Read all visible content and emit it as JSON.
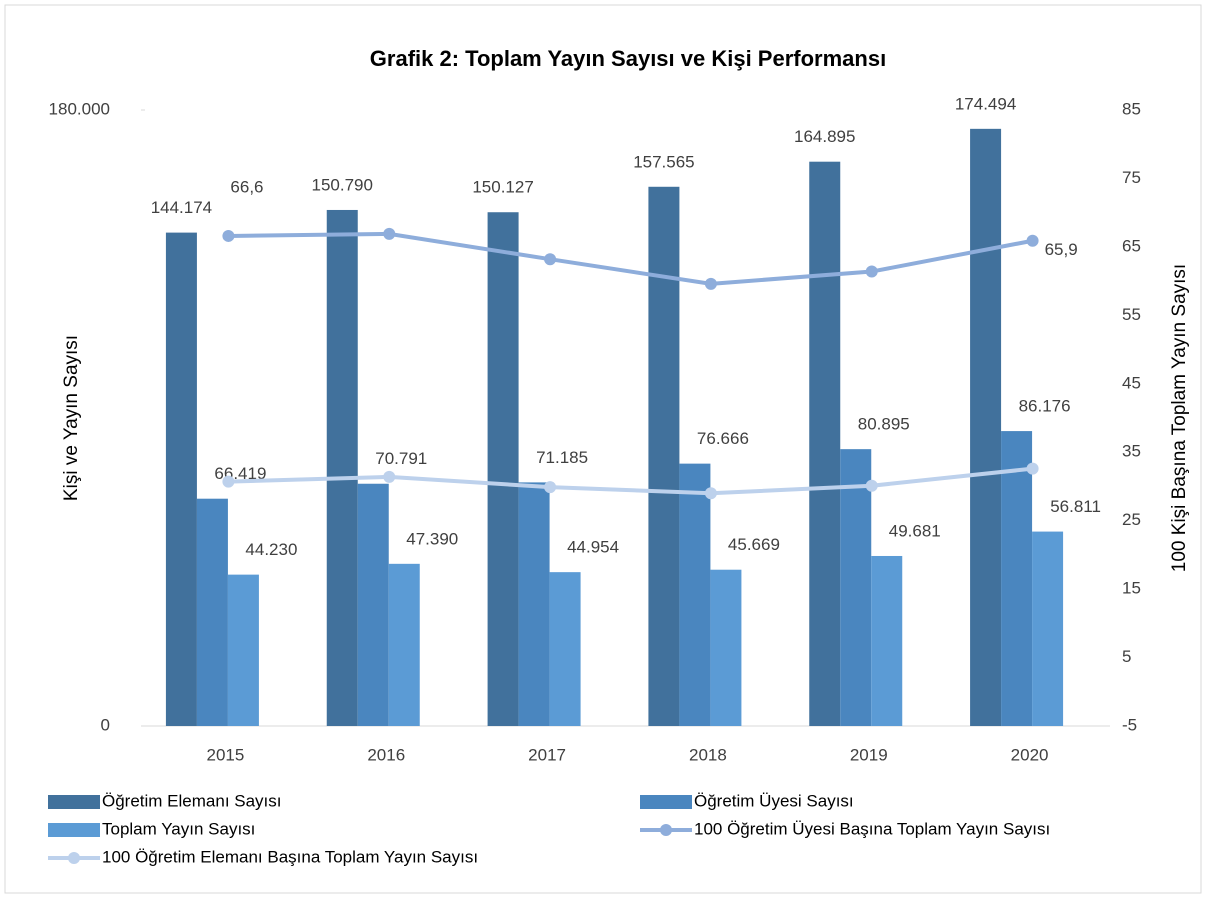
{
  "chart_data": {
    "type": "bar",
    "title": "Grafik 2: Toplam Yayın Sayısı ve Kişi Performansı",
    "y_label": "Kişi ve Yayın Sayısı",
    "y2_label": "100 Kişi Başına Toplam Yayın Sayısı",
    "categories": [
      "2015",
      "2016",
      "2017",
      "2018",
      "2019",
      "2020"
    ],
    "ylim": [
      0,
      180000
    ],
    "yticks": [
      0,
      {
        "value": 180000,
        "label": "180.000"
      }
    ],
    "y2lim": [
      -5,
      85
    ],
    "y2ticks": [
      -5,
      5,
      15,
      25,
      35,
      45,
      55,
      65,
      75,
      85
    ],
    "legend": "bottom",
    "series": [
      {
        "name": "Öğretim Elemanı Sayısı",
        "type": "bar",
        "color": "#41719c",
        "values": [
          144174,
          150790,
          150127,
          157565,
          164895,
          174494
        ],
        "value_labels": [
          "144.174",
          "150.790",
          "150.127",
          "157.565",
          "164.895",
          "174.494"
        ]
      },
      {
        "name": "Öğretim Üyesi Sayısı",
        "type": "bar",
        "color": "#4a86bf",
        "values": [
          66419,
          70791,
          71185,
          76666,
          80895,
          86176
        ],
        "value_labels": [
          "66.419",
          "70.791",
          "71.185",
          "76.666",
          "80.895",
          "86.176"
        ]
      },
      {
        "name": "Toplam Yayın Sayısı",
        "type": "bar",
        "color": "#5b9bd5",
        "values": [
          44230,
          47390,
          44954,
          45669,
          49681,
          56811
        ],
        "value_labels": [
          "44.230",
          "47.390",
          "44.954",
          "45.669",
          "49.681",
          "56.811"
        ]
      },
      {
        "name": "100 Öğretim Üyesi Başına Toplam Yayın Sayısı",
        "type": "line",
        "axis": "y2",
        "color": "#8eaddb",
        "values": [
          66.6,
          66.9,
          63.2,
          59.6,
          61.4,
          65.9
        ],
        "value_labels": [
          "66,6",
          null,
          null,
          null,
          null,
          "65,9"
        ]
      },
      {
        "name": "100 Öğretim Elemanı Başına Toplam Yayın Sayısı",
        "type": "line",
        "axis": "y2",
        "color": "#bdd1ec",
        "values": [
          30.7,
          31.4,
          29.9,
          29.0,
          30.1,
          32.6
        ]
      }
    ]
  }
}
